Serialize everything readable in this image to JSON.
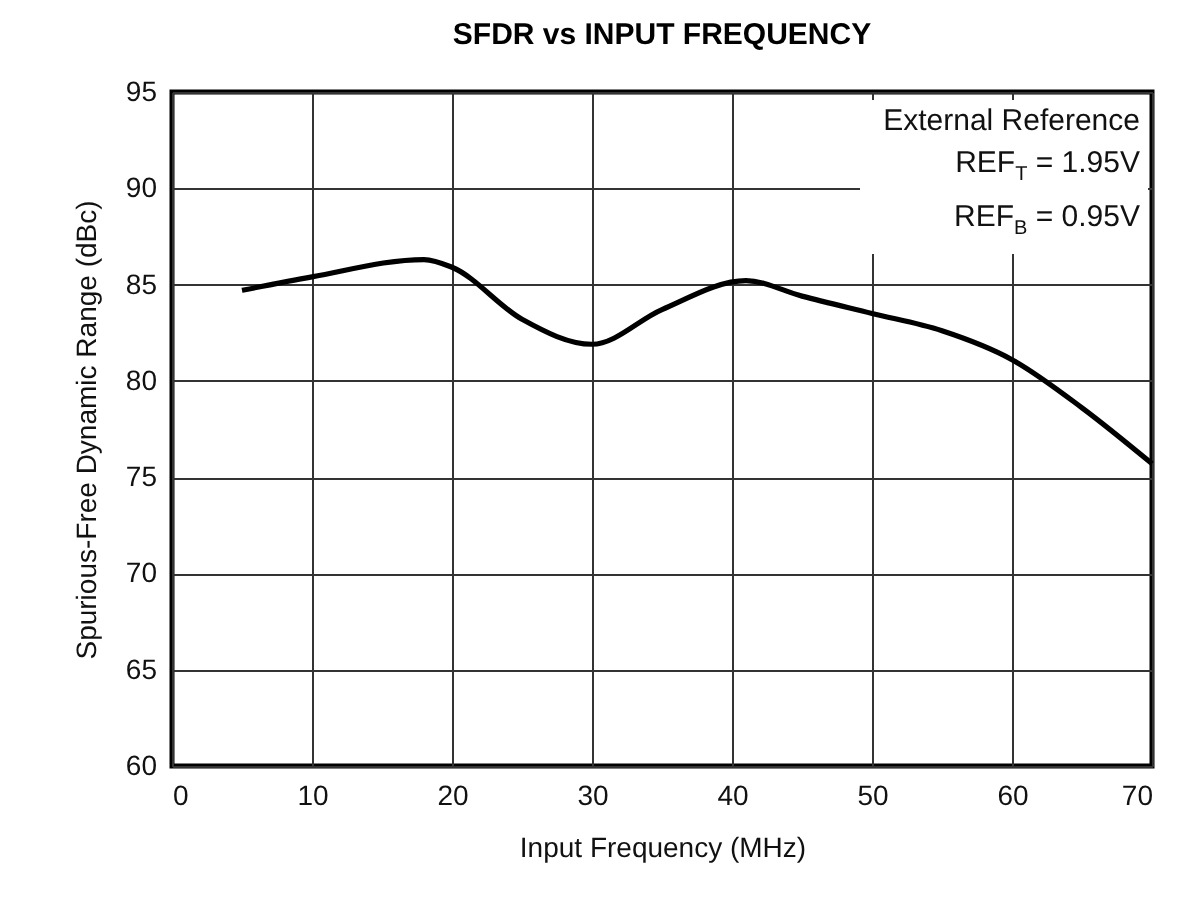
{
  "chart_data": {
    "type": "line",
    "title": "SFDR vs INPUT FREQUENCY",
    "xlabel": "Input Frequency (MHz)",
    "ylabel": "Spurious-Free Dynamic Range (dBc)",
    "annotations": [
      "External Reference",
      "REF$_{T}$ = 1.95V",
      "REF$_{B}$ = 0.95V"
    ],
    "x": [
      5,
      10,
      18,
      20,
      25,
      30,
      35,
      41,
      45,
      50,
      55,
      60,
      65,
      70
    ],
    "series": [
      {
        "color": "#000000",
        "values": [
          84.7,
          85.4,
          86.3,
          85.9,
          83.2,
          81.9,
          83.7,
          85.2,
          84.4,
          83.5,
          82.6,
          81.1,
          78.6,
          75.7
        ]
      }
    ],
    "xlim": [
      0,
      70
    ],
    "xticks": [
      0,
      10,
      20,
      30,
      40,
      50,
      60,
      70
    ],
    "ylim": [
      60,
      95
    ],
    "yticks": [
      60,
      65,
      70,
      75,
      80,
      85,
      90,
      95
    ],
    "grid": true,
    "line_style": "solid"
  }
}
